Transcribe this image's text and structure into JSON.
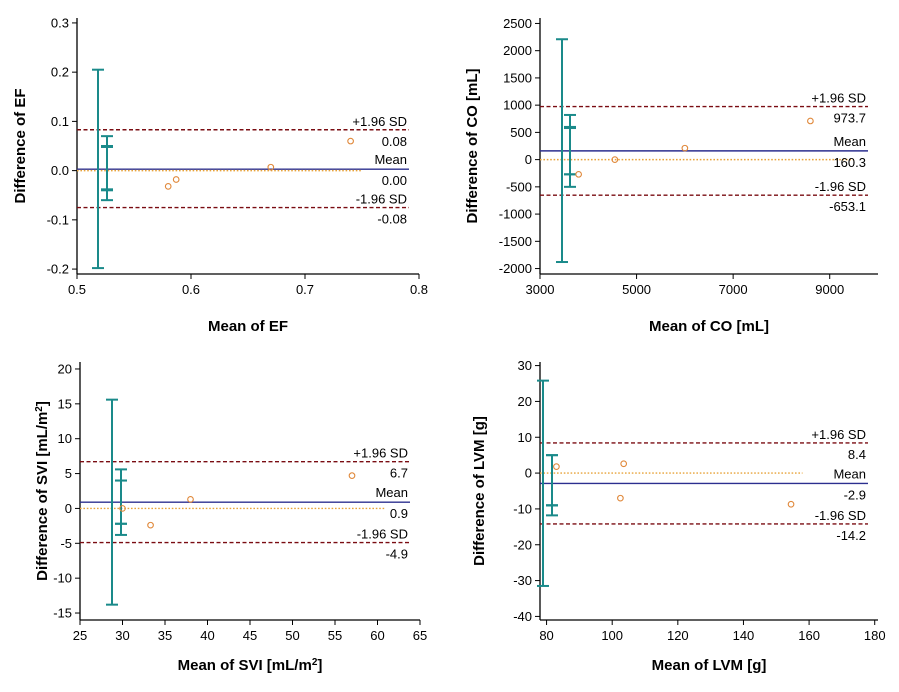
{
  "chart_data": [
    {
      "type": "scatter",
      "subtype": "bland-altman",
      "xlabel": "Mean of EF",
      "ylabel": "Difference of EF",
      "xlim": [
        0.5,
        0.8
      ],
      "ylim": [
        -0.21,
        0.31
      ],
      "xticks": [
        "0.5",
        "0.6",
        "0.7",
        "0.8"
      ],
      "yticks": [
        "-0.2",
        "-0.1",
        "0.0",
        "0.1",
        "0.2",
        "0.3"
      ],
      "points": [
        [
          0.58,
          -0.032
        ],
        [
          0.587,
          -0.018
        ],
        [
          0.67,
          0.007
        ],
        [
          0.74,
          0.06
        ]
      ],
      "mean": {
        "value": 0.003,
        "label": "Mean",
        "value_label": "0.00"
      },
      "upper": {
        "value": 0.083,
        "label": "+1.96 SD",
        "value_label": "0.08"
      },
      "lower": {
        "value": -0.075,
        "label": "-1.96 SD",
        "value_label": "-0.08"
      },
      "regression_x": [
        0.5,
        0.75
      ],
      "ci_outer": [
        -0.198,
        0.205
      ],
      "ci_upper_band": [
        0.048,
        0.07
      ],
      "ci_mean_band": [
        -0.04,
        0.05
      ],
      "ci_lower_band": [
        -0.06,
        -0.038
      ]
    },
    {
      "type": "scatter",
      "subtype": "bland-altman",
      "xlabel": "Mean of CO [mL]",
      "ylabel": "Difference of CO [mL]",
      "xlim": [
        3000,
        10000
      ],
      "ylim": [
        -2100,
        2600
      ],
      "xticks": [
        "3000",
        "5000",
        "7000",
        "9000"
      ],
      "yticks": [
        "-2000",
        "-1500",
        "-1000",
        "-500",
        "0",
        "500",
        "1000",
        "1500",
        "2000",
        "2500"
      ],
      "points": [
        [
          3800,
          -270
        ],
        [
          4550,
          0
        ],
        [
          6000,
          210
        ],
        [
          8600,
          710
        ]
      ],
      "mean": {
        "value": 160.3,
        "label": "Mean",
        "value_label": "160.3"
      },
      "upper": {
        "value": 973.7,
        "label": "+1.96 SD",
        "value_label": "973.7"
      },
      "lower": {
        "value": -653.1,
        "label": "-1.96 SD",
        "value_label": "-653.1"
      },
      "regression_x": [
        3000,
        9500
      ],
      "ci_outer": [
        -1880,
        2210
      ],
      "ci_upper_band": [
        580,
        820
      ],
      "ci_mean_band": [
        -270,
        600
      ],
      "ci_lower_band": [
        -500,
        -270
      ]
    },
    {
      "type": "scatter",
      "subtype": "bland-altman",
      "xlabel": "Mean of SVI [mL/m2]",
      "ylabel": "Difference of SVI [mL/m2]",
      "xlim": [
        25,
        65
      ],
      "ylim": [
        -16,
        21
      ],
      "xticks": [
        "25",
        "30",
        "35",
        "40",
        "45",
        "50",
        "55",
        "60",
        "65"
      ],
      "yticks": [
        "-15",
        "-10",
        "-5",
        "0",
        "5",
        "10",
        "15",
        "20"
      ],
      "points": [
        [
          30,
          0
        ],
        [
          33.3,
          -2.4
        ],
        [
          38,
          1.3
        ],
        [
          57,
          4.7
        ]
      ],
      "mean": {
        "value": 0.9,
        "label": "Mean",
        "value_label": "0.9"
      },
      "upper": {
        "value": 6.7,
        "label": "+1.96 SD",
        "value_label": "6.7"
      },
      "lower": {
        "value": -4.9,
        "label": "-1.96 SD",
        "value_label": "-4.9"
      },
      "regression_x": [
        25,
        61
      ],
      "ci_outer": [
        -13.8,
        15.6
      ],
      "ci_upper_band": [
        4,
        5.6
      ],
      "ci_mean_band": [
        -2.2,
        4
      ],
      "ci_lower_band": [
        -3.8,
        -2.2
      ]
    },
    {
      "type": "scatter",
      "subtype": "bland-altman",
      "xlabel": "Mean of LVM [g]",
      "ylabel": "Difference of LVM [g]",
      "xlim": [
        78,
        181
      ],
      "ylim": [
        -41,
        31
      ],
      "xticks": [
        "80",
        "100",
        "120",
        "140",
        "160",
        "180"
      ],
      "yticks": [
        "-40",
        "-30",
        "-20",
        "-10",
        "0",
        "10",
        "20",
        "30"
      ],
      "points": [
        [
          83,
          1.8
        ],
        [
          102.5,
          -7
        ],
        [
          103.5,
          2.6
        ],
        [
          154.5,
          -8.7
        ]
      ],
      "mean": {
        "value": -2.9,
        "label": "Mean",
        "value_label": "-2.9"
      },
      "upper": {
        "value": 8.4,
        "label": "+1.96 SD",
        "value_label": "8.4"
      },
      "lower": {
        "value": -14.2,
        "label": "-1.96 SD",
        "value_label": "-14.2"
      },
      "regression_x": [
        78,
        158
      ],
      "ci_outer": [
        -31.5,
        25.8
      ],
      "ci_upper_band": [
        -9,
        5
      ],
      "ci_mean_band": [
        -9,
        5
      ],
      "ci_lower_band": [
        -11.8,
        -9
      ]
    }
  ],
  "colors": {
    "limits": "#7a0c12",
    "mean": "#2b2f8f",
    "regression": "#e8a33a",
    "ci": "#1a8a8a",
    "points": "#e0883a",
    "axis": "#000000"
  }
}
